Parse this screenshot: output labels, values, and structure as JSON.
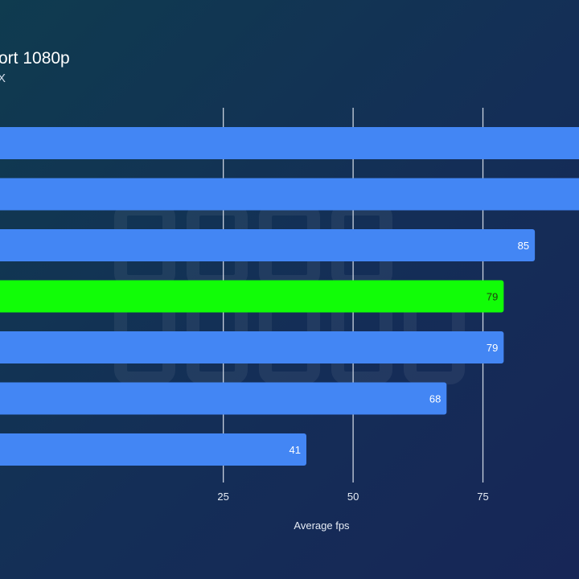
{
  "chart_data": {
    "type": "bar",
    "orientation": "horizontal",
    "title": "ort 1080p",
    "subtitle": "X",
    "xlabel": "Average fps",
    "ylabel": "",
    "xlim": [
      -18,
      93.5
    ],
    "ticks": [
      25,
      50,
      75
    ],
    "tick_labels": [
      "25",
      "50",
      "75"
    ],
    "grid": "vertical",
    "legend": "none",
    "bars": [
      {
        "value": 95,
        "label": "",
        "highlight": false
      },
      {
        "value": 95,
        "label": "",
        "highlight": false
      },
      {
        "value": 85,
        "label": "85",
        "highlight": false
      },
      {
        "value": 79,
        "label": "79",
        "highlight": true
      },
      {
        "value": 79,
        "label": "79",
        "highlight": false
      },
      {
        "value": 68,
        "label": "68",
        "highlight": false
      },
      {
        "value": 41,
        "label": "41",
        "highlight": false
      }
    ],
    "colors": {
      "default": "#4386f4",
      "highlight": "#11fd07",
      "grid": "#c9d2df"
    }
  }
}
